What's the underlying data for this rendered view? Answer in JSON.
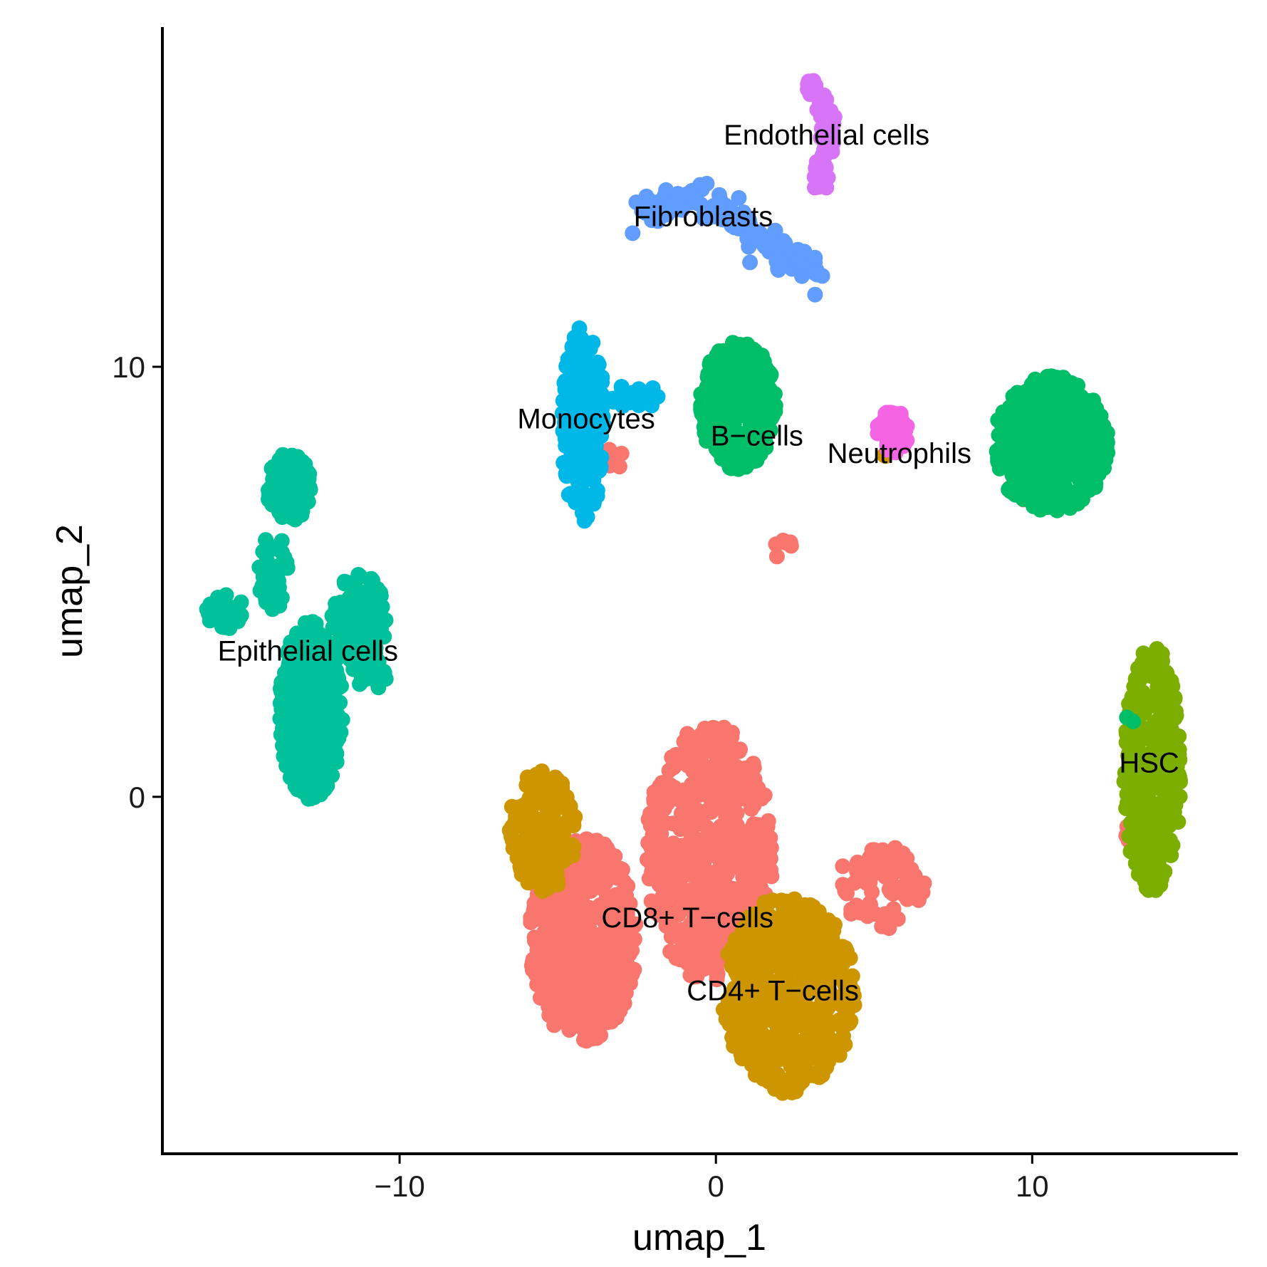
{
  "chart_data": {
    "type": "scatter",
    "title": "",
    "xlabel": "umap_1",
    "ylabel": "umap_2",
    "xlim": [
      -17.5,
      16.5
    ],
    "ylim": [
      -8.3,
      17.9
    ],
    "x_ticks": [
      -10,
      0,
      10
    ],
    "x_tick_labels": [
      "−10",
      "0",
      "10"
    ],
    "y_ticks": [
      0,
      10
    ],
    "y_tick_labels": [
      "0",
      "10"
    ],
    "grid": false,
    "legend": "none",
    "clusters": [
      {
        "name": "CD8+ T-cells",
        "label": "CD8+ T−cells",
        "color": "#F8766D",
        "label_pos": [
          -0.9,
          -2.8
        ],
        "blobs": [
          [
            -4.2,
            -3.3,
            1.7,
            2.4,
            520
          ],
          [
            -0.2,
            -1.3,
            2.0,
            3.0,
            600
          ],
          [
            5.2,
            -2.1,
            1.4,
            1.0,
            70
          ],
          [
            -3.2,
            7.9,
            0.3,
            0.3,
            6
          ],
          [
            2.1,
            5.8,
            0.3,
            0.3,
            6
          ],
          [
            9.6,
            7.3,
            0.5,
            0.4,
            6
          ],
          [
            13.1,
            -0.9,
            0.2,
            0.3,
            5
          ]
        ]
      },
      {
        "name": "CD4+ T-cells",
        "label": "CD4+ T−cells",
        "color": "#CD9600",
        "label_pos": [
          1.8,
          -4.5
        ],
        "blobs": [
          [
            2.3,
            -4.6,
            2.1,
            2.3,
            560
          ],
          [
            -5.5,
            -0.8,
            1.1,
            1.4,
            180
          ],
          [
            5.4,
            8.0,
            0.2,
            0.2,
            3
          ]
        ]
      },
      {
        "name": "HSC",
        "label": "HSC",
        "color": "#7CAE00",
        "label_pos": [
          13.7,
          0.8
        ],
        "blobs": [
          [
            13.8,
            0.6,
            0.9,
            2.9,
            280
          ]
        ]
      },
      {
        "name": "B-cells",
        "label": "B−cells",
        "color": "#00BE67",
        "label_pos": [
          1.3,
          8.4
        ],
        "blobs": [
          [
            0.7,
            9.1,
            1.2,
            1.5,
            320
          ],
          [
            10.6,
            8.2,
            1.8,
            1.6,
            480
          ],
          [
            13.0,
            1.8,
            0.2,
            0.2,
            2
          ]
        ]
      },
      {
        "name": "Epithelial cells",
        "label": "Epithelial cells",
        "color": "#00C19A",
        "label_pos": [
          -12.9,
          3.4
        ],
        "blobs": [
          [
            -12.8,
            2.0,
            1.0,
            2.1,
            360
          ],
          [
            -11.3,
            4.0,
            0.9,
            1.3,
            130
          ],
          [
            -13.5,
            7.2,
            0.7,
            0.8,
            130
          ],
          [
            -14.0,
            5.2,
            0.5,
            0.9,
            40
          ],
          [
            -15.5,
            4.3,
            0.6,
            0.4,
            25
          ],
          [
            -10.9,
            2.8,
            0.5,
            0.3,
            15
          ]
        ]
      },
      {
        "name": "Monocytes",
        "label": "Monocytes",
        "color": "#00B8E7",
        "label_pos": [
          -4.1,
          8.8
        ],
        "blobs": [
          [
            -4.2,
            8.7,
            0.7,
            2.3,
            180
          ],
          [
            -2.5,
            9.3,
            0.8,
            0.3,
            25
          ]
        ]
      },
      {
        "name": "Fibroblasts",
        "label": "Fibroblasts",
        "color": "#619CFF",
        "label_pos": [
          -0.4,
          13.5
        ],
        "arc": [
          [
            -2.4,
            13.5
          ],
          [
            -1.0,
            13.9
          ],
          [
            0.6,
            13.6
          ],
          [
            2.1,
            12.6
          ],
          [
            3.4,
            12.1
          ]
        ],
        "arc_count": 160,
        "arc_spread": 0.32
      },
      {
        "name": "Neutrophils",
        "label": "Neutrophils",
        "color": "#F564E3",
        "label_pos": [
          5.8,
          8.0
        ],
        "blobs": [
          [
            5.6,
            8.5,
            0.5,
            0.5,
            70
          ]
        ]
      },
      {
        "name": "Endothelial cells",
        "label": "Endothelial cells",
        "color": "#D774F7",
        "label_pos": [
          3.5,
          15.4
        ],
        "arc": [
          [
            2.9,
            16.8
          ],
          [
            3.5,
            15.9
          ],
          [
            3.6,
            15.1
          ],
          [
            3.2,
            14.2
          ]
        ],
        "arc_count": 110,
        "arc_spread": 0.18
      }
    ]
  }
}
